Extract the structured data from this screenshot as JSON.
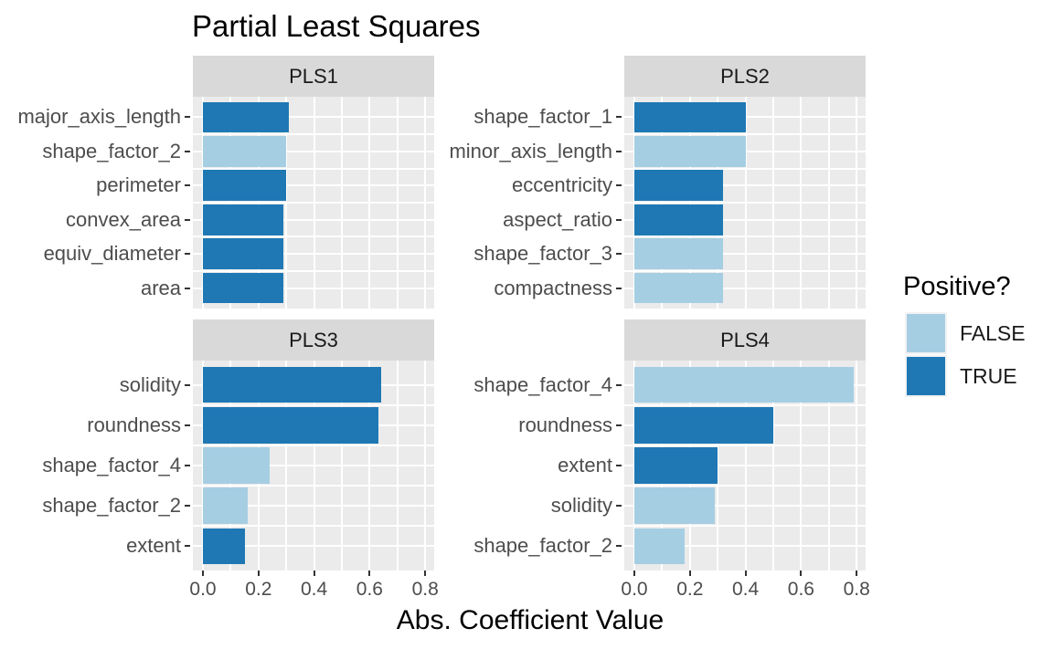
{
  "title": "Partial Least Squares",
  "x_axis": {
    "label": "Abs. Coefficient Value",
    "tick_labels": [
      "0.0",
      "0.2",
      "0.4",
      "0.6",
      "0.8"
    ]
  },
  "legend": {
    "title": "Positive?",
    "items": [
      {
        "label": "FALSE",
        "positive": false
      },
      {
        "label": "TRUE",
        "positive": true
      }
    ]
  },
  "colors": {
    "positive_true": "#1F78B4",
    "positive_false": "#A6CEE3",
    "panel_bg": "#EBEBEB",
    "strip_bg": "#D9D9D9",
    "grid": "#FFFFFF",
    "axis_text": "#4D4D4D"
  },
  "chart_data": {
    "type": "bar",
    "orientation": "horizontal",
    "title": "Partial Least Squares",
    "xlabel": "Abs. Coefficient Value",
    "ylabel": "",
    "xlim": [
      0,
      0.8
    ],
    "x_ticks": [
      0.0,
      0.2,
      0.4,
      0.6,
      0.8
    ],
    "grid": true,
    "legend_title": "Positive?",
    "legend_position": "right",
    "facets": [
      {
        "name": "PLS1",
        "bars": [
          {
            "label": "major_axis_length",
            "value": 0.31,
            "positive": true
          },
          {
            "label": "shape_factor_2",
            "value": 0.3,
            "positive": false
          },
          {
            "label": "perimeter",
            "value": 0.3,
            "positive": true
          },
          {
            "label": "convex_area",
            "value": 0.29,
            "positive": true
          },
          {
            "label": "equiv_diameter",
            "value": 0.29,
            "positive": true
          },
          {
            "label": "area",
            "value": 0.29,
            "positive": true
          }
        ]
      },
      {
        "name": "PLS2",
        "bars": [
          {
            "label": "shape_factor_1",
            "value": 0.4,
            "positive": true
          },
          {
            "label": "minor_axis_length",
            "value": 0.4,
            "positive": false
          },
          {
            "label": "eccentricity",
            "value": 0.32,
            "positive": true
          },
          {
            "label": "aspect_ratio",
            "value": 0.32,
            "positive": true
          },
          {
            "label": "shape_factor_3",
            "value": 0.32,
            "positive": false
          },
          {
            "label": "compactness",
            "value": 0.32,
            "positive": false
          }
        ]
      },
      {
        "name": "PLS3",
        "bars": [
          {
            "label": "solidity",
            "value": 0.64,
            "positive": true
          },
          {
            "label": "roundness",
            "value": 0.63,
            "positive": true
          },
          {
            "label": "shape_factor_4",
            "value": 0.24,
            "positive": false
          },
          {
            "label": "shape_factor_2",
            "value": 0.16,
            "positive": false
          },
          {
            "label": "extent",
            "value": 0.15,
            "positive": true
          }
        ]
      },
      {
        "name": "PLS4",
        "bars": [
          {
            "label": "shape_factor_4",
            "value": 0.79,
            "positive": false
          },
          {
            "label": "roundness",
            "value": 0.5,
            "positive": true
          },
          {
            "label": "extent",
            "value": 0.3,
            "positive": true
          },
          {
            "label": "solidity",
            "value": 0.29,
            "positive": false
          },
          {
            "label": "shape_factor_2",
            "value": 0.18,
            "positive": false
          }
        ]
      }
    ]
  }
}
